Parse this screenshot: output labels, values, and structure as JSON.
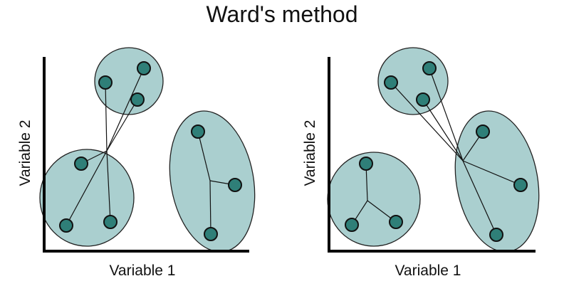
{
  "title": "Ward's method",
  "colors": {
    "cluster_fill": "#aacfcf",
    "point_fill": "#2f7f78",
    "line": "#111111"
  },
  "panels": [
    {
      "name": "left",
      "xlabel": "Variable 1",
      "ylabel": "Variable 2"
    },
    {
      "name": "right",
      "xlabel": "Variable 1",
      "ylabel": "Variable 2"
    }
  ]
}
